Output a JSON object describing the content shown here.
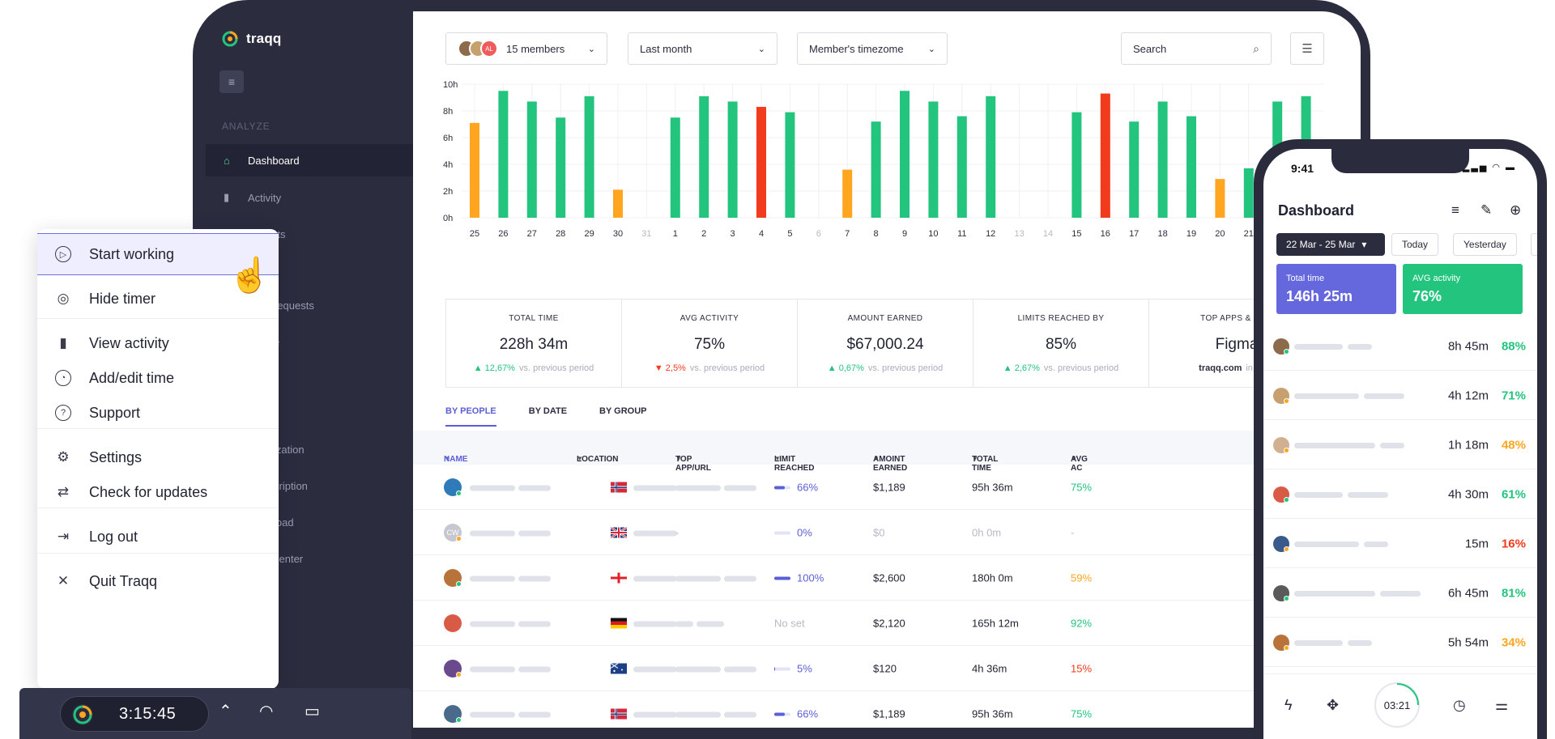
{
  "app": {
    "brand": "traqq",
    "section_label": "ANALYZE",
    "nav": [
      {
        "label": "Dashboard",
        "icon": "home-icon",
        "active": true
      },
      {
        "label": "Activity",
        "icon": "bar-chart-icon",
        "active": false
      }
    ],
    "nav_fragments": [
      "rts",
      "requests",
      "e",
      "s",
      "ization",
      "cription",
      "load",
      "center"
    ],
    "filters": {
      "members": "15 members",
      "members_avatar_initials": "AL",
      "period": "Last month",
      "timezone": "Member's timezome",
      "search_placeholder": "Search"
    }
  },
  "chart_data": {
    "type": "bar",
    "y_ticks": [
      "0h",
      "2h",
      "4h",
      "6h",
      "8h",
      "10h"
    ],
    "ylim": [
      0,
      10
    ],
    "categories": [
      "25",
      "26",
      "27",
      "28",
      "29",
      "30",
      "31",
      "1",
      "2",
      "3",
      "4",
      "5",
      "6",
      "7",
      "8",
      "9",
      "10",
      "11",
      "12",
      "13",
      "14",
      "15",
      "16",
      "17",
      "18",
      "19",
      "20",
      "21"
    ],
    "values": [
      7.1,
      9.5,
      8.7,
      7.5,
      9.1,
      2.1,
      0,
      7.5,
      9.1,
      8.7,
      8.3,
      7.9,
      0,
      3.6,
      7.2,
      9.5,
      8.7,
      7.6,
      9.1,
      0,
      0,
      7.9,
      9.3,
      7.2,
      8.7,
      7.6,
      2.9,
      3.7
    ],
    "statuses": [
      "orange",
      "green",
      "green",
      "green",
      "green",
      "orange",
      "none",
      "green",
      "green",
      "green",
      "red",
      "green",
      "none",
      "orange",
      "green",
      "green",
      "green",
      "green",
      "green",
      "none",
      "none",
      "green",
      "red",
      "green",
      "green",
      "green",
      "orange",
      "green"
    ],
    "extra_values_beyond_21": [
      8.7,
      9.1
    ],
    "colors": {
      "green": "#22c47e",
      "orange": "#ffa51f",
      "red": "#f23a1d",
      "grid": "#eef0f5"
    }
  },
  "stats": [
    {
      "label": "TOTAL TIME",
      "value": "228h 34m",
      "delta": "12,67%",
      "direction": "up",
      "suffix": "vs. previous period"
    },
    {
      "label": "AVG ACTIVITY",
      "value": "75%",
      "delta": "2,5%",
      "direction": "down",
      "suffix": "vs. previous period"
    },
    {
      "label": "AMOUNT EARNED",
      "value": "$67,000.24",
      "delta": "0,67%",
      "direction": "up",
      "suffix": "vs. previous period"
    },
    {
      "label": "LIMITS REACHED BY",
      "value": "85%",
      "delta": "2,67%",
      "direction": "up",
      "suffix": "vs. previous period"
    },
    {
      "label": "TOP APPS & WEB",
      "value": "Figma",
      "delta": "traqq.com",
      "direction": "none",
      "suffix": "in previ"
    }
  ],
  "tabs": [
    "BY PEOPLE",
    "BY DATE",
    "BY GROUP"
  ],
  "table": {
    "headers": [
      "NAME",
      "LOCATION",
      "TOP APP/URL",
      "LIMIT REACHED",
      "AMOINT EARNED",
      "TOTAL TIME",
      "AVG AC"
    ],
    "rows": [
      {
        "initials": "",
        "avatar_color": "#2f7ab8",
        "status": "green",
        "flag": "no",
        "app_dash": "",
        "limit": "66%",
        "limit_fill": 0.66,
        "earned": "$1,189",
        "time": "95h 36m",
        "avg": "75%",
        "avg_color": "#22c47e",
        "muted": false
      },
      {
        "initials": "CW",
        "avatar_color": "#c5c7d1",
        "status": "orange",
        "flag": "gb",
        "app_dash": "-",
        "limit": "0%",
        "limit_fill": 0,
        "earned": "$0",
        "time": "0h 0m",
        "avg": "-",
        "avg_color": "#b7b9c6",
        "muted": true
      },
      {
        "initials": "",
        "avatar_color": "#b8733b",
        "status": "green",
        "flag": "ge",
        "app_dash": "",
        "limit": "100%",
        "limit_fill": 1,
        "earned": "$2,600",
        "time": "180h 0m",
        "avg": "59%",
        "avg_color": "#ffa51f",
        "muted": false
      },
      {
        "initials": "",
        "avatar_color": "#d95a45",
        "status": "",
        "flag": "de",
        "app_dash": "No set",
        "limit": "",
        "limit_fill": 0,
        "earned": "$2,120",
        "time": "165h 12m",
        "avg": "92%",
        "avg_color": "#22c47e",
        "muted": false
      },
      {
        "initials": "",
        "avatar_color": "#6a4a8c",
        "status": "orange",
        "flag": "au",
        "app_dash": "",
        "limit": "5%",
        "limit_fill": 0.05,
        "earned": "$120",
        "time": "4h 36m",
        "avg": "15%",
        "avg_color": "#f23a1d",
        "muted": false
      },
      {
        "initials": "",
        "avatar_color": "#4a6a8c",
        "status": "green",
        "flag": "no",
        "app_dash": "",
        "limit": "66%",
        "limit_fill": 0.66,
        "earned": "$1,189",
        "time": "95h 36m",
        "avg": "75%",
        "avg_color": "#22c47e",
        "muted": false
      }
    ]
  },
  "context_menu": [
    {
      "label": "Start working",
      "icon": "play-icon",
      "highlight": true
    },
    {
      "label": "Hide timer",
      "icon": "timer-icon"
    },
    {
      "label": "View activity",
      "icon": "bar-chart-icon"
    },
    {
      "label": "Add/edit time",
      "icon": "clock-edit-icon"
    },
    {
      "label": "Support",
      "icon": "help-icon"
    },
    {
      "label": "Settings",
      "icon": "gear-icon"
    },
    {
      "label": "Check for updates",
      "icon": "refresh-icon"
    },
    {
      "label": "Log out",
      "icon": "logout-icon"
    },
    {
      "label": "Quit Traqq",
      "icon": "close-icon"
    }
  ],
  "taskbar": {
    "timer": "3:15:45"
  },
  "phone": {
    "clock": "9:41",
    "title": "Dashboard",
    "date_range": "22 Mar - 25 Mar",
    "chips": [
      "Today",
      "Yesterday"
    ],
    "cards": [
      {
        "label": "Total time",
        "value": "146h 25m",
        "color": "#6468dc"
      },
      {
        "label": "AVG activity",
        "value": "76%",
        "color": "#22c47e"
      }
    ],
    "rows": [
      {
        "duration": "8h 45m",
        "pct": "88%",
        "color": "#22c47e",
        "avatar": "#8c6a4a",
        "status": "green"
      },
      {
        "duration": "4h 12m",
        "pct": "71%",
        "color": "#22c47e",
        "avatar": "#c7a070",
        "status": "orange"
      },
      {
        "duration": "1h 18m",
        "pct": "48%",
        "color": "#ffa51f",
        "avatar": "#d0b090",
        "status": "orange"
      },
      {
        "duration": "4h 30m",
        "pct": "61%",
        "color": "#22c47e",
        "avatar": "#d95a45",
        "status": "green"
      },
      {
        "duration": "15m",
        "pct": "16%",
        "color": "#f23a1d",
        "avatar": "#3a5a8c",
        "status": "orange"
      },
      {
        "duration": "6h 45m",
        "pct": "81%",
        "color": "#22c47e",
        "avatar": "#5a5a5a",
        "status": "green"
      },
      {
        "duration": "5h 54m",
        "pct": "34%",
        "color": "#ffa51f",
        "avatar": "#b8733b",
        "status": "orange"
      }
    ],
    "timer": "03:21"
  }
}
